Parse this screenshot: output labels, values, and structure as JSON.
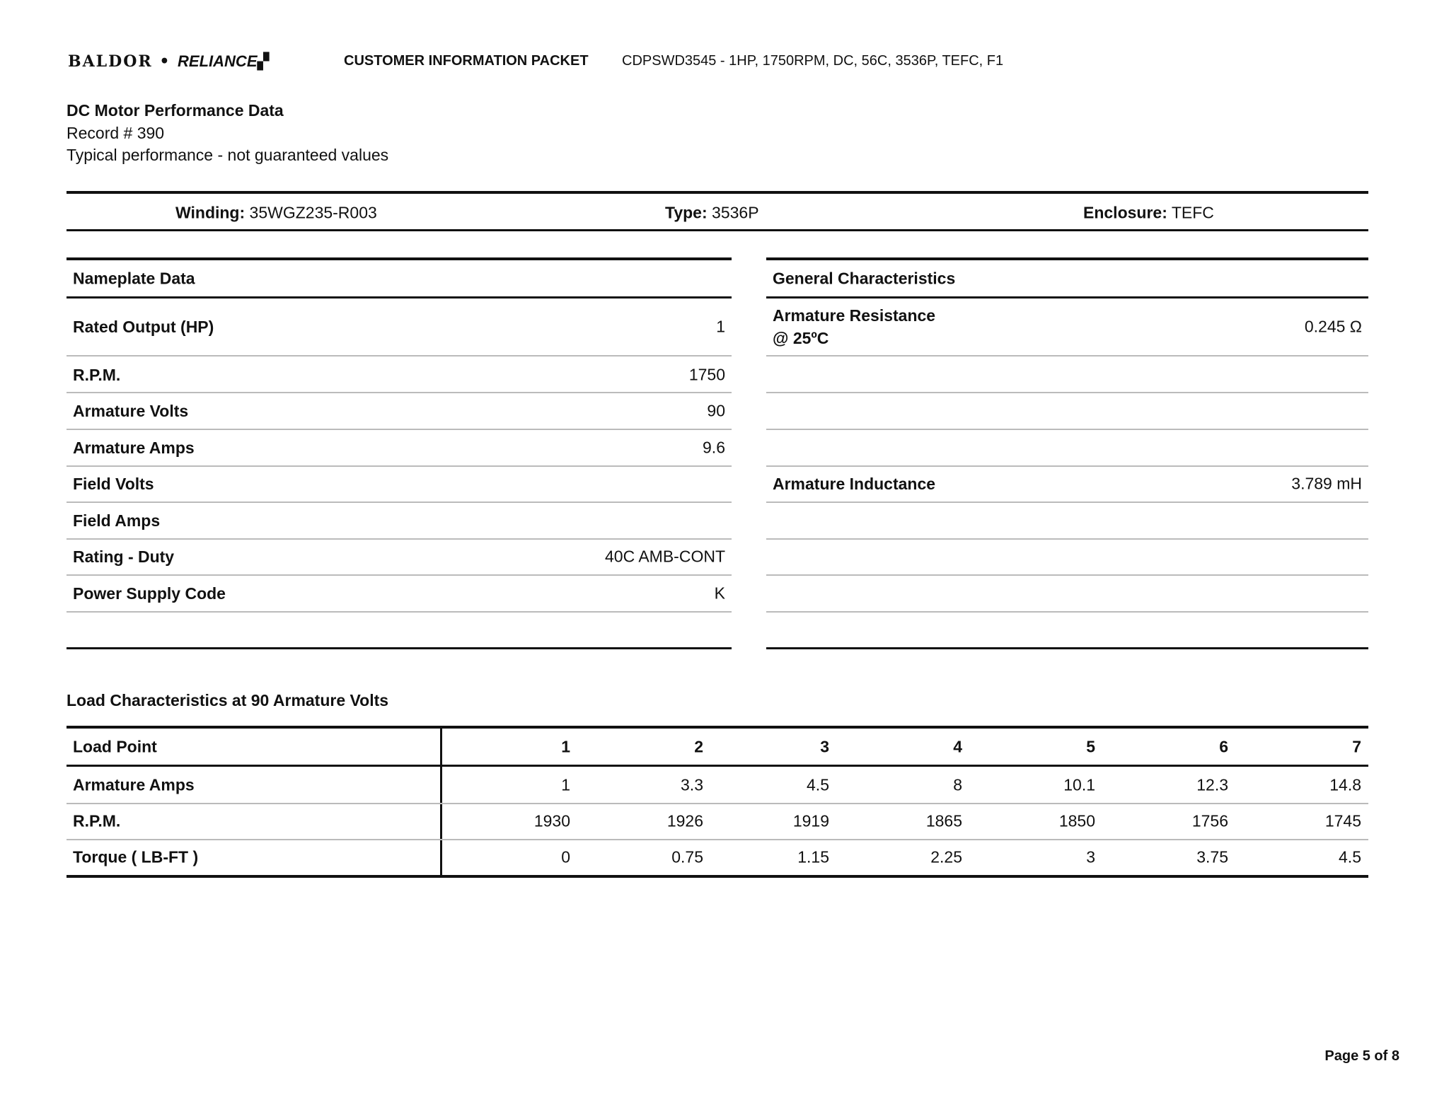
{
  "header": {
    "logo_text": "BALDOR • RELIANCE",
    "packet_title": "CUSTOMER INFORMATION PACKET",
    "model": "CDPSWD3545 - 1HP, 1750RPM, DC, 56C, 3536P, TEFC, F1"
  },
  "doc": {
    "title": "DC Motor Performance Data",
    "record": "Record # 390",
    "note": "Typical performance - not guaranteed values"
  },
  "summary": [
    {
      "label": "Winding:",
      "value": "35WGZ235-R003"
    },
    {
      "label": "Type:",
      "value": "3536P"
    },
    {
      "label": "Enclosure:",
      "value": "TEFC"
    }
  ],
  "nameplate": {
    "title": "Nameplate Data",
    "rows": [
      {
        "label": "Rated Output (HP)",
        "value": "1"
      },
      {
        "label": "R.P.M.",
        "value": "1750"
      },
      {
        "label": "Armature Volts",
        "value": "90"
      },
      {
        "label": "Armature Amps",
        "value": "9.6"
      },
      {
        "label": "Field Volts",
        "value": ""
      },
      {
        "label": "Field Amps",
        "value": ""
      },
      {
        "label": "Rating - Duty",
        "value": "40C AMB-CONT"
      },
      {
        "label": "Power Supply Code",
        "value": "K"
      }
    ]
  },
  "general": {
    "title": "General Characteristics",
    "rows": [
      {
        "label": "Armature Resistance",
        "label2": "@ 25ºC",
        "value": "0.245 Ω"
      },
      {
        "label": "",
        "value": ""
      },
      {
        "label": "",
        "value": ""
      },
      {
        "label": "",
        "value": ""
      },
      {
        "label": "Armature Inductance",
        "value": "3.789 mH"
      },
      {
        "label": "",
        "value": ""
      },
      {
        "label": "",
        "value": ""
      },
      {
        "label": "",
        "value": ""
      }
    ]
  },
  "load": {
    "title": "Load Characteristics at 90 Armature Volts",
    "header": {
      "label": "Load Point",
      "values": [
        "1",
        "2",
        "3",
        "4",
        "5",
        "6",
        "7"
      ]
    },
    "rows": [
      {
        "label": "Armature Amps",
        "values": [
          "1",
          "3.3",
          "4.5",
          "8",
          "10.1",
          "12.3",
          "14.8"
        ]
      },
      {
        "label": "R.P.M.",
        "values": [
          "1930",
          "1926",
          "1919",
          "1865",
          "1850",
          "1756",
          "1745"
        ]
      },
      {
        "label": "Torque ( LB-FT )",
        "values": [
          "0",
          "0.75",
          "1.15",
          "2.25",
          "3",
          "3.75",
          "4.5"
        ]
      }
    ]
  },
  "footer": {
    "page": "Page 5 of 8"
  }
}
